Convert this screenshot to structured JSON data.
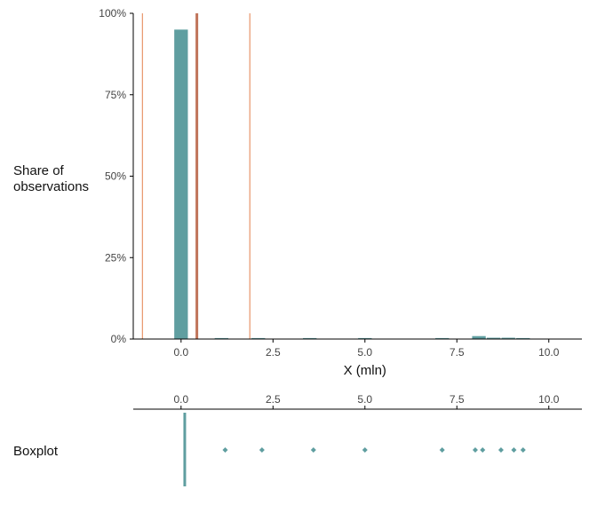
{
  "chart_data": [
    {
      "type": "bar",
      "title": "",
      "xlabel": "X (mln)",
      "ylabel_lines": [
        "Share of",
        "observations"
      ],
      "xlim": [
        -1.3,
        10.9
      ],
      "ylim": [
        0,
        1
      ],
      "x_ticks": [
        0,
        2.5,
        5,
        7.5,
        10
      ],
      "x_tick_labels": [
        "0.0",
        "2.5",
        "5.0",
        "7.5",
        "10.0"
      ],
      "y_ticks": [
        0,
        0.25,
        0.5,
        0.75,
        1
      ],
      "y_tick_labels": [
        "0%",
        "25%",
        "50%",
        "75%",
        "100%"
      ],
      "bin_width": 0.37,
      "bins": [
        {
          "x": 0.0,
          "share": 0.95
        },
        {
          "x": 1.1,
          "share": 0.003
        },
        {
          "x": 2.1,
          "share": 0.003
        },
        {
          "x": 3.5,
          "share": 0.003
        },
        {
          "x": 5.0,
          "share": 0.003
        },
        {
          "x": 7.1,
          "share": 0.003
        },
        {
          "x": 8.1,
          "share": 0.009
        },
        {
          "x": 8.5,
          "share": 0.004
        },
        {
          "x": 8.9,
          "share": 0.004
        },
        {
          "x": 9.3,
          "share": 0.003
        }
      ],
      "reference_lines": [
        {
          "x": -1.05,
          "style": "thin",
          "color": "#E8966A"
        },
        {
          "x": 0.43,
          "style": "thick",
          "color": "#C0745A"
        },
        {
          "x": 1.87,
          "style": "thin",
          "color": "#E8966A"
        }
      ],
      "bar_color": "#5F9EA0",
      "grid": false
    },
    {
      "type": "boxplot",
      "label": "Boxplot",
      "xlim": [
        -1.3,
        10.9
      ],
      "x_ticks": [
        0,
        2.5,
        5,
        7.5,
        10
      ],
      "x_tick_labels": [
        "0.0",
        "2.5",
        "5.0",
        "7.5",
        "10.0"
      ],
      "box_median": 0.1,
      "outliers": [
        1.2,
        2.2,
        3.6,
        5.0,
        7.1,
        8.0,
        8.2,
        8.7,
        9.05,
        9.3
      ],
      "color": "#5F9EA0"
    }
  ]
}
